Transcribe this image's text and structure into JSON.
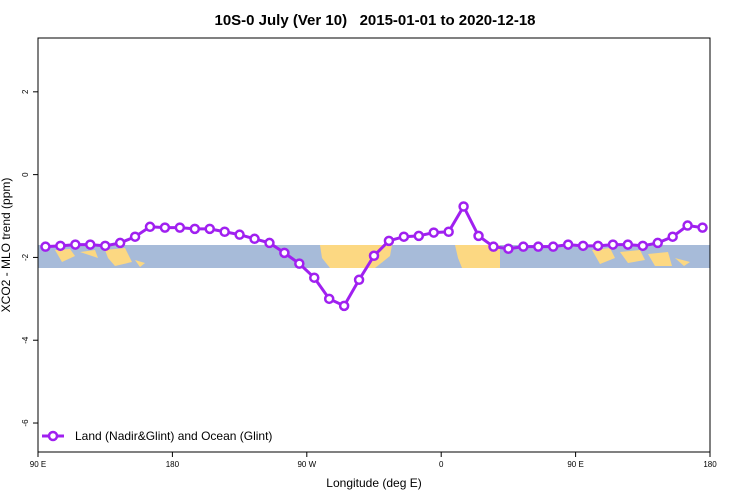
{
  "chart_data": {
    "type": "line",
    "title": "10S-0 July (Ver 10)   2015-01-01 to 2020-12-18",
    "x_label": "Longitude (deg E)",
    "y_label": "XCO2 - MLO trend (ppm)",
    "x": [
      95,
      105,
      115,
      125,
      135,
      145,
      155,
      165,
      175,
      185,
      195,
      205,
      215,
      225,
      235,
      245,
      255,
      265,
      275,
      285,
      295,
      305,
      315,
      325,
      335,
      345,
      355,
      365,
      375,
      385,
      395,
      405,
      415,
      425,
      435,
      445,
      455,
      465,
      475,
      485,
      495,
      505,
      515,
      525,
      535
    ],
    "series": [
      {
        "name": "Land (Nadir&Glint) and Ocean (Glint)",
        "color": "#a020f0",
        "values": [
          -1.74,
          -1.72,
          -1.69,
          -1.69,
          -1.72,
          -1.65,
          -1.5,
          -1.26,
          -1.28,
          -1.28,
          -1.31,
          -1.31,
          -1.38,
          -1.45,
          -1.55,
          -1.65,
          -1.89,
          -2.15,
          -2.49,
          -3.0,
          -3.17,
          -2.54,
          -1.96,
          -1.6,
          -1.5,
          -1.48,
          -1.4,
          -1.38,
          -0.77,
          -1.48,
          -1.74,
          -1.79,
          -1.74,
          -1.74,
          -1.74,
          -1.69,
          -1.72,
          -1.72,
          -1.69,
          -1.69,
          -1.72,
          -1.65,
          -1.5,
          -1.23,
          -1.28
        ]
      }
    ],
    "xlim": [
      90,
      540
    ],
    "xticks": [
      {
        "value": 90,
        "label": "90 E"
      },
      {
        "value": 180,
        "label": "180"
      },
      {
        "value": 270,
        "label": "90 W"
      },
      {
        "value": 360,
        "label": "0"
      },
      {
        "value": 450,
        "label": "90 E"
      },
      {
        "value": 540,
        "label": "180"
      }
    ],
    "ylim": [
      -6.7,
      3.3
    ],
    "yticks": [
      2,
      0,
      -2,
      -4,
      -6
    ],
    "legend": "bottom-left"
  }
}
